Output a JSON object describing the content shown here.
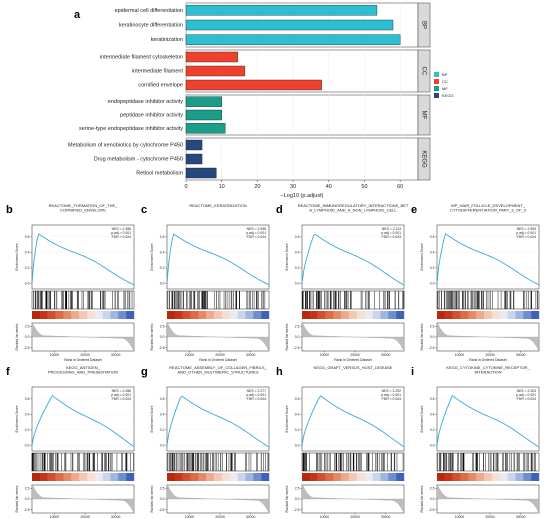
{
  "figure_labels": {
    "a": "a",
    "b": "b",
    "c": "c",
    "d": "d",
    "e": "e",
    "f": "f",
    "g": "g",
    "h": "h",
    "i": "i"
  },
  "colors": {
    "BP": "#2bbfd4",
    "CC": "#f0402e",
    "MF": "#1a9e8a",
    "KEGG": "#26487c",
    "curve": "#3aa8dc"
  },
  "chart_data": [
    {
      "type": "bar",
      "orientation": "horizontal",
      "xlabel": "−Log10 (p.adjust)",
      "xlim": [
        0,
        65
      ],
      "xticks": [
        "0",
        "10",
        "20",
        "30",
        "40",
        "50",
        "60"
      ],
      "groups": [
        {
          "name": "BP",
          "categories": [
            "epidermal cell differentiation",
            "keratinocyte differentiation",
            "keratinization"
          ],
          "values": [
            53.5,
            58,
            60
          ]
        },
        {
          "name": "CC",
          "categories": [
            "intermediate filament cytoskeleton",
            "intermediate filament",
            "cornified envelope"
          ],
          "values": [
            14.5,
            16.5,
            38
          ]
        },
        {
          "name": "MF",
          "categories": [
            "endopeptidase inhibitor activity",
            "peptidase inhibitor activity",
            "serine-type endopeptidase inhibitor activity"
          ],
          "values": [
            10,
            10,
            11
          ]
        },
        {
          "name": "KEGG",
          "categories": [
            "Metabolism of xenobiotics by cytochrome P450",
            "Drug metabolism - cytochrome P450",
            "Retinol metabolism"
          ],
          "values": [
            4.5,
            4.5,
            8.5
          ]
        }
      ],
      "legend": {
        "entries": [
          "BP",
          "CC",
          "MF",
          "KEGG"
        ],
        "placement": "right"
      }
    },
    {
      "type": "gsea_panels",
      "common": {
        "ylabel_top": "Enrichment Score",
        "ylabel_bottom": "Ranked list metric",
        "xlabel": "Rank in Ordered Dataset",
        "xticks": [
          "10000",
          "20000",
          "30000"
        ],
        "yticks_bottom": [
          "2.5",
          "0.0",
          "-2.5"
        ]
      },
      "panels": [
        {
          "id": "b",
          "title": [
            "REACTOME_FORMATION_OF_THE_",
            "CORNIFIED_ENVELOPE"
          ],
          "stats": [
            "NES = 2.388",
            "p.adj = 0.001",
            "FDR = 0.024"
          ],
          "yticks": [
            "0.6",
            "0.4",
            "0.2",
            "0.0"
          ],
          "peak": 0.06
        },
        {
          "id": "c",
          "title": [
            "REACTOME_KERATINIZATION"
          ],
          "stats": [
            "NES = 2.538",
            "p.adj = 0.001",
            "FDR = 0.024"
          ],
          "yticks": [
            "0.6",
            "0.4",
            "0.2",
            "0.0"
          ],
          "peak": 0.06
        },
        {
          "id": "d",
          "title": [
            "REACTOME_IMMUNOREGULATORY_INTERACTIONS_BET",
            "A_LYMPHOID_AND_A_NON_LYMPHOID_CELL"
          ],
          "stats": [
            "NES = 2.113",
            "p.adj = 0.001",
            "FDR = 0.024"
          ],
          "yticks": [
            "0.6",
            "0.4",
            "0.2",
            "0.0"
          ],
          "peak": 0.12
        },
        {
          "id": "e",
          "title": [
            "WP_HAIR_FOLLICLE_DEVELOPMENT_",
            "CYTODIFFERENTIATION_PART_3_OF_3"
          ],
          "stats": [
            "NES = 2.593",
            "p.adj = 0.001",
            "FDR = 0.024"
          ],
          "yticks": [
            "0.6",
            "0.4",
            "0.2",
            "0.0"
          ],
          "peak": 0.08
        },
        {
          "id": "f",
          "title": [
            "KEGG_ANTIGEN_",
            "PROCESSING_AND_PRESENTATION"
          ],
          "stats": [
            "NES = 2.286",
            "p.adj = 0.001",
            "FDR = 0.024"
          ],
          "yticks": [
            "0.6",
            "0.4",
            "0.2",
            "0.0"
          ],
          "peak": 0.2
        },
        {
          "id": "g",
          "title": [
            "REACTOME_ASSEMBLY_OF_COLLAGEN_FIBRILS_",
            "AND_OTHER_MULTIMERIC_STRUCTURES"
          ],
          "stats": [
            "NES = 2.277",
            "p.adj = 0.001",
            "FDR = 0.024"
          ],
          "yticks": [
            "0.6",
            "0.4",
            "0.2",
            "0.0"
          ],
          "peak": 0.14
        },
        {
          "id": "h",
          "title": [
            "KEGG_GRAFT_VERSUS_HOST_DISEASE"
          ],
          "stats": [
            "NES = 2.292",
            "p.adj = 0.001",
            "FDR = 0.024"
          ],
          "yticks": [
            "0.6",
            "0.4",
            "0.2",
            "0.0"
          ],
          "peak": 0.18
        },
        {
          "id": "i",
          "title": [
            "KEGG_CYTOKINE_CYTOKINE_RECEPTOR_",
            "INTERACTION"
          ],
          "stats": [
            "NES = 2.203",
            "p.adj = 0.001",
            "FDR = 0.024"
          ],
          "yticks": [
            "0.6",
            "0.4",
            "0.2",
            "0.0"
          ],
          "peak": 0.15
        }
      ]
    }
  ]
}
